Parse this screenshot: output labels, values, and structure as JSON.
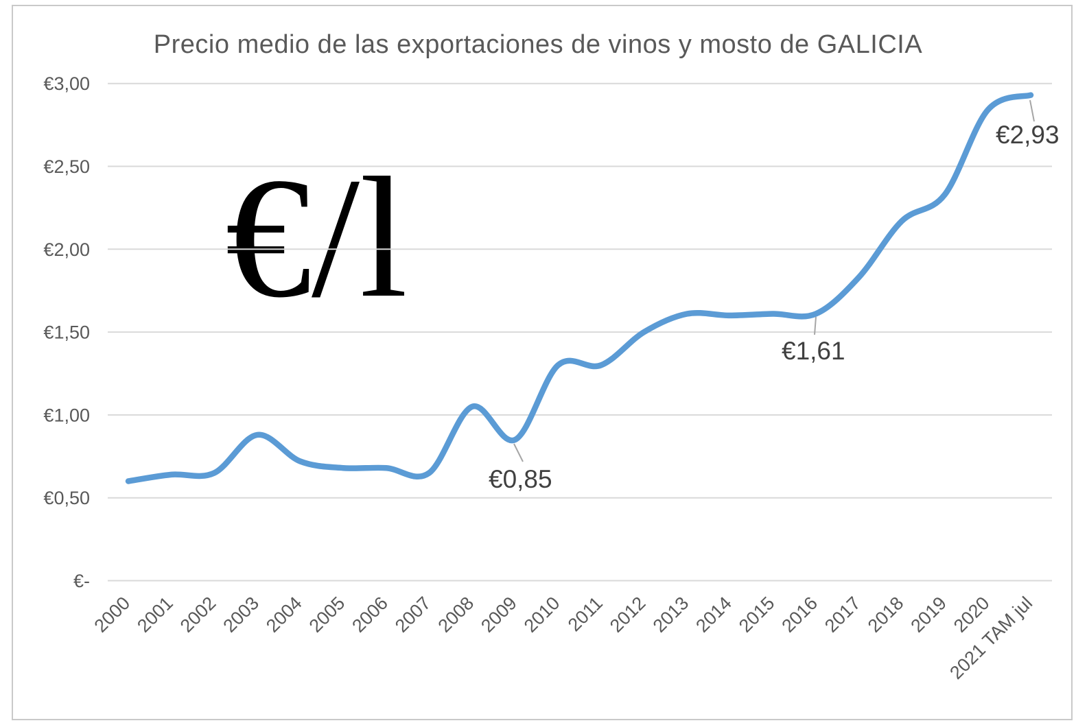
{
  "chart": {
    "title": "Precio medio de las exportaciones de vinos y mosto de GALICIA",
    "unit_annotation": "€/l"
  },
  "chart_data": {
    "type": "line",
    "title": "Precio medio de las exportaciones de vinos y mosto de GALICIA",
    "unit": "€/l",
    "categories": [
      "2000",
      "2001",
      "2002",
      "2003",
      "2004",
      "2005",
      "2006",
      "2007",
      "2008",
      "2009",
      "2010",
      "2011",
      "2012",
      "2013",
      "2014",
      "2015",
      "2016",
      "2017",
      "2018",
      "2019",
      "2020",
      "2021 TAM jul"
    ],
    "values": [
      0.6,
      0.64,
      0.65,
      0.88,
      0.72,
      0.68,
      0.68,
      0.65,
      1.05,
      0.85,
      1.3,
      1.3,
      1.5,
      1.61,
      1.6,
      1.61,
      1.61,
      1.83,
      2.17,
      2.33,
      2.84,
      2.93
    ],
    "yticks": {
      "values": [
        3.0,
        2.5,
        2.0,
        1.5,
        1.0,
        0.5,
        0
      ],
      "labels": [
        "€3,00",
        "€2,50",
        "€2,00",
        "€1,50",
        "€1,00",
        "€0,50",
        "€-"
      ]
    },
    "ylim": [
      0,
      3
    ],
    "xlabel": "",
    "ylabel": "",
    "grid": "horizontal",
    "legend": "none",
    "line_smooth": true,
    "series_color": "#5B9BD5",
    "gridline_color": "#D9D9D9",
    "axis_text_color": "#595959",
    "data_label_color": "#404040",
    "annotations": [
      {
        "category": "2009",
        "value": 0.85,
        "label": "€0,85"
      },
      {
        "category": "2016",
        "value": 1.61,
        "label": "€1,61"
      },
      {
        "category": "2021 TAM jul",
        "value": 2.93,
        "label": "€2,93"
      }
    ]
  }
}
